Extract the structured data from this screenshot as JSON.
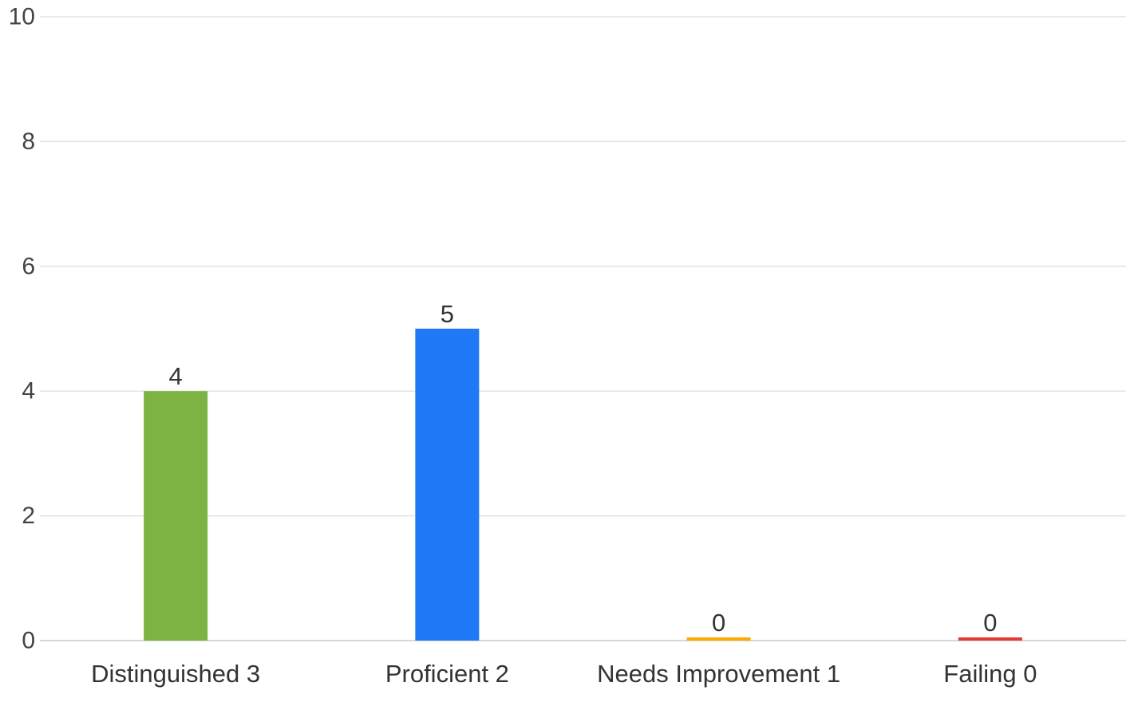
{
  "chart_data": {
    "type": "bar",
    "categories": [
      "Distinguished 3",
      "Proficient 2",
      "Needs Improvement 1",
      "Failing 0"
    ],
    "values": [
      4,
      5,
      0,
      0
    ],
    "colors": [
      "#7cb342",
      "#1f78f6",
      "#f9ab00",
      "#e53935"
    ],
    "ylim": [
      0,
      10
    ],
    "yticks": [
      0,
      2,
      4,
      6,
      8,
      10
    ],
    "grid": true,
    "legend": "none",
    "title": "",
    "xlabel": "",
    "ylabel": ""
  }
}
